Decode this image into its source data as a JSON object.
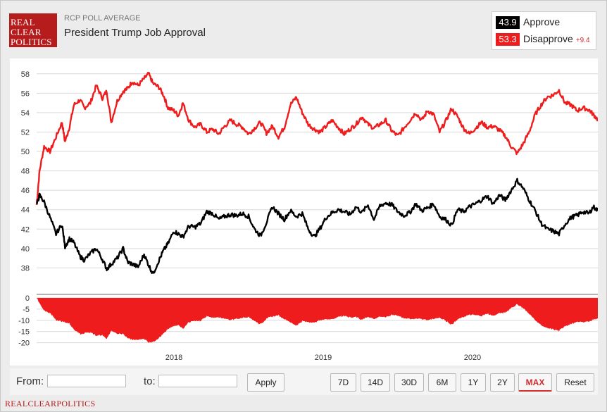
{
  "header": {
    "logo_lines": [
      "REAL",
      "CLEAR",
      "POLITICS"
    ],
    "kicker": "RCP POLL AVERAGE",
    "title": "President Trump Job Approval"
  },
  "legend": {
    "approve_value": "43.9",
    "approve_label": "Approve",
    "disapprove_value": "53.3",
    "disapprove_label": "Disapprove",
    "spread": "+9.4"
  },
  "colors": {
    "approve": "#000000",
    "disapprove": "#ee1c1c",
    "grid": "#d9d9d9",
    "brand": "#b71c1c"
  },
  "chart_data": [
    {
      "type": "line",
      "title": "President Trump Job Approval",
      "x_domain": [
        2017.08,
        2020.84
      ],
      "x_ticks": [
        {
          "value": 2018,
          "label": "2018"
        },
        {
          "value": 2019,
          "label": "2019"
        },
        {
          "value": 2020,
          "label": "2020"
        }
      ],
      "ylim": [
        36,
        59
      ],
      "y_ticks": [
        38,
        40,
        42,
        44,
        46,
        48,
        50,
        52,
        54,
        56,
        58
      ],
      "grid": true,
      "series": [
        {
          "name": "Disapprove",
          "color": "#ee1c1c",
          "x": [
            2017.08,
            2017.1,
            2017.13,
            2017.17,
            2017.21,
            2017.25,
            2017.27,
            2017.3,
            2017.33,
            2017.37,
            2017.4,
            2017.44,
            2017.48,
            2017.52,
            2017.55,
            2017.58,
            2017.62,
            2017.66,
            2017.69,
            2017.72,
            2017.76,
            2017.8,
            2017.83,
            2017.86,
            2017.9,
            2017.93,
            2017.96,
            2018.0,
            2018.03,
            2018.06,
            2018.1,
            2018.14,
            2018.18,
            2018.22,
            2018.26,
            2018.3,
            2018.34,
            2018.38,
            2018.42,
            2018.46,
            2018.5,
            2018.54,
            2018.58,
            2018.62,
            2018.66,
            2018.7,
            2018.74,
            2018.78,
            2018.82,
            2018.86,
            2018.9,
            2018.94,
            2018.98,
            2019.02,
            2019.06,
            2019.1,
            2019.14,
            2019.18,
            2019.22,
            2019.26,
            2019.3,
            2019.34,
            2019.38,
            2019.42,
            2019.46,
            2019.5,
            2019.54,
            2019.58,
            2019.62,
            2019.66,
            2019.7,
            2019.74,
            2019.78,
            2019.82,
            2019.86,
            2019.9,
            2019.94,
            2019.98,
            2020.02,
            2020.06,
            2020.1,
            2020.14,
            2020.18,
            2020.22,
            2020.26,
            2020.3,
            2020.34,
            2020.38,
            2020.42,
            2020.46,
            2020.5,
            2020.54,
            2020.58,
            2020.62,
            2020.66,
            2020.7,
            2020.74,
            2020.78,
            2020.81,
            2020.84
          ],
          "y": [
            44.5,
            48.0,
            50.5,
            50.0,
            51.5,
            53.0,
            51.0,
            52.5,
            54.8,
            55.3,
            54.5,
            55.0,
            56.8,
            55.5,
            56.2,
            53.0,
            55.2,
            56.2,
            56.5,
            57.2,
            56.8,
            57.5,
            58.0,
            57.0,
            56.6,
            55.8,
            54.5,
            54.2,
            53.7,
            55.0,
            53.2,
            52.5,
            52.8,
            52.0,
            52.3,
            51.8,
            52.6,
            53.2,
            52.8,
            52.5,
            51.8,
            52.4,
            53.0,
            51.9,
            52.6,
            51.5,
            52.5,
            54.8,
            55.6,
            54.0,
            52.8,
            52.3,
            52.0,
            52.6,
            53.2,
            52.5,
            51.8,
            52.3,
            52.8,
            53.6,
            52.8,
            52.4,
            52.8,
            53.2,
            52.1,
            51.6,
            52.4,
            53.2,
            54.0,
            53.2,
            54.2,
            53.8,
            52.0,
            53.1,
            54.4,
            53.6,
            52.4,
            51.8,
            52.4,
            53.0,
            52.5,
            52.6,
            52.2,
            51.6,
            50.5,
            49.8,
            50.8,
            52.0,
            53.8,
            54.8,
            55.6,
            55.8,
            56.3,
            55.0,
            54.8,
            54.2,
            54.5,
            54.3,
            53.8,
            53.3
          ]
        },
        {
          "name": "Approve",
          "color": "#000000",
          "x": [
            2017.08,
            2017.1,
            2017.13,
            2017.17,
            2017.21,
            2017.25,
            2017.27,
            2017.3,
            2017.33,
            2017.37,
            2017.4,
            2017.44,
            2017.48,
            2017.52,
            2017.55,
            2017.58,
            2017.62,
            2017.66,
            2017.69,
            2017.72,
            2017.76,
            2017.8,
            2017.83,
            2017.86,
            2017.9,
            2017.93,
            2017.96,
            2018.0,
            2018.03,
            2018.06,
            2018.1,
            2018.14,
            2018.18,
            2018.22,
            2018.26,
            2018.3,
            2018.34,
            2018.38,
            2018.42,
            2018.46,
            2018.5,
            2018.54,
            2018.58,
            2018.62,
            2018.66,
            2018.7,
            2018.74,
            2018.78,
            2018.82,
            2018.86,
            2018.9,
            2018.94,
            2018.98,
            2019.02,
            2019.06,
            2019.1,
            2019.14,
            2019.18,
            2019.22,
            2019.26,
            2019.3,
            2019.34,
            2019.38,
            2019.42,
            2019.46,
            2019.5,
            2019.54,
            2019.58,
            2019.62,
            2019.66,
            2019.7,
            2019.74,
            2019.78,
            2019.82,
            2019.86,
            2019.9,
            2019.94,
            2019.98,
            2020.02,
            2020.06,
            2020.1,
            2020.14,
            2020.18,
            2020.22,
            2020.26,
            2020.3,
            2020.34,
            2020.38,
            2020.42,
            2020.46,
            2020.5,
            2020.54,
            2020.58,
            2020.62,
            2020.66,
            2020.7,
            2020.74,
            2020.78,
            2020.81,
            2020.84
          ],
          "y": [
            44.5,
            45.5,
            44.8,
            43.2,
            41.5,
            42.5,
            40.2,
            41.0,
            40.6,
            39.2,
            38.8,
            39.5,
            40.0,
            38.9,
            37.9,
            38.4,
            39.0,
            40.0,
            38.6,
            38.4,
            38.1,
            39.4,
            38.3,
            37.4,
            38.8,
            39.8,
            40.5,
            41.8,
            41.5,
            41.2,
            42.3,
            42.2,
            42.6,
            43.8,
            43.6,
            43.0,
            43.3,
            43.5,
            43.4,
            43.6,
            43.3,
            42.0,
            41.3,
            42.7,
            44.3,
            43.6,
            43.0,
            43.9,
            43.3,
            43.6,
            42.0,
            41.2,
            42.1,
            43.2,
            43.7,
            44.0,
            43.8,
            43.5,
            44.3,
            43.7,
            44.5,
            43.0,
            44.4,
            44.7,
            44.5,
            43.8,
            43.4,
            43.7,
            44.6,
            43.9,
            44.2,
            44.6,
            43.3,
            43.0,
            42.4,
            44.0,
            43.8,
            44.3,
            44.6,
            45.0,
            45.4,
            44.6,
            45.5,
            45.0,
            46.0,
            47.0,
            46.2,
            45.0,
            43.9,
            42.6,
            42.0,
            41.8,
            41.5,
            42.5,
            43.2,
            43.4,
            43.8,
            43.6,
            44.3,
            43.9
          ]
        }
      ],
      "spread_panel": {
        "type": "area",
        "name": "Spread",
        "color": "#ee1c1c",
        "ylim": [
          -22,
          0
        ],
        "y_ticks": [
          0,
          -5,
          -10,
          -15,
          -20
        ]
      }
    }
  ],
  "controls": {
    "from_label": "From:",
    "to_label": "to:",
    "apply_label": "Apply",
    "ranges": [
      "7D",
      "14D",
      "30D",
      "6M",
      "1Y",
      "2Y",
      "MAX"
    ],
    "active_range": "MAX",
    "reset_label": "Reset"
  },
  "footer": {
    "brand": "REALCLEARPOLITICS"
  }
}
